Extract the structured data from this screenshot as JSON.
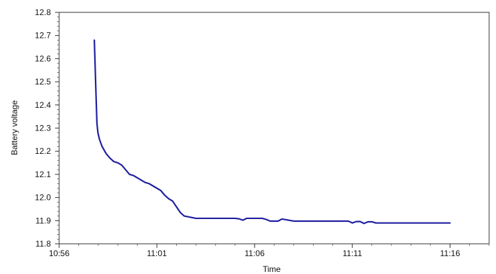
{
  "chart_data": {
    "type": "line",
    "title": "",
    "xlabel": "Time",
    "ylabel": "Battery voltage",
    "x_unit": "minutes after 10:56",
    "xlim": [
      "10:56",
      "11:18"
    ],
    "ylim": [
      11.8,
      12.8
    ],
    "x_ticks": [
      "10:56",
      "11:01",
      "11:06",
      "11:11",
      "11:16"
    ],
    "y_ticks": [
      "12.8",
      "12.7",
      "12.6",
      "12.5",
      "12.4",
      "12.3",
      "12.2",
      "12.1",
      "12.0",
      "11.9",
      "11.8"
    ],
    "grid": false,
    "legend": "none",
    "series": [
      {
        "color": "#1f1fa0",
        "x": [
          "10:57:48",
          "10:57:53",
          "10:57:56",
          "10:57:59",
          "10:58:04",
          "10:58:12",
          "10:58:24",
          "10:58:36",
          "10:58:48",
          "10:59:00",
          "10:59:12",
          "10:59:24",
          "10:59:36",
          "10:59:48",
          "11:00:00",
          "11:00:12",
          "11:00:24",
          "11:00:36",
          "11:00:48",
          "11:01:00",
          "11:01:12",
          "11:01:24",
          "11:01:36",
          "11:01:48",
          "11:02:00",
          "11:02:12",
          "11:02:24",
          "11:03:00",
          "11:04:00",
          "11:05:00",
          "11:05:12",
          "11:05:24",
          "11:05:36",
          "11:06:00",
          "11:06:24",
          "11:06:36",
          "11:06:48",
          "11:07:00",
          "11:07:12",
          "11:07:24",
          "11:08:00",
          "11:09:00",
          "11:10:00",
          "11:10:48",
          "11:11:00",
          "11:11:12",
          "11:11:24",
          "11:11:36",
          "11:11:48",
          "11:12:00",
          "11:12:12",
          "11:13:00",
          "11:14:00",
          "11:15:00",
          "11:16:00"
        ],
        "y": [
          12.68,
          12.45,
          12.32,
          12.28,
          12.25,
          12.22,
          12.19,
          12.17,
          12.155,
          12.15,
          12.14,
          12.12,
          12.1,
          12.095,
          12.085,
          12.075,
          12.065,
          12.06,
          12.05,
          12.04,
          12.03,
          12.01,
          11.995,
          11.985,
          11.96,
          11.935,
          11.92,
          11.91,
          11.91,
          11.91,
          11.908,
          11.902,
          11.91,
          11.91,
          11.91,
          11.905,
          11.898,
          11.898,
          11.898,
          11.907,
          11.898,
          11.898,
          11.898,
          11.898,
          11.89,
          11.896,
          11.896,
          11.888,
          11.895,
          11.895,
          11.89,
          11.89,
          11.89,
          11.89,
          11.89
        ]
      }
    ]
  }
}
